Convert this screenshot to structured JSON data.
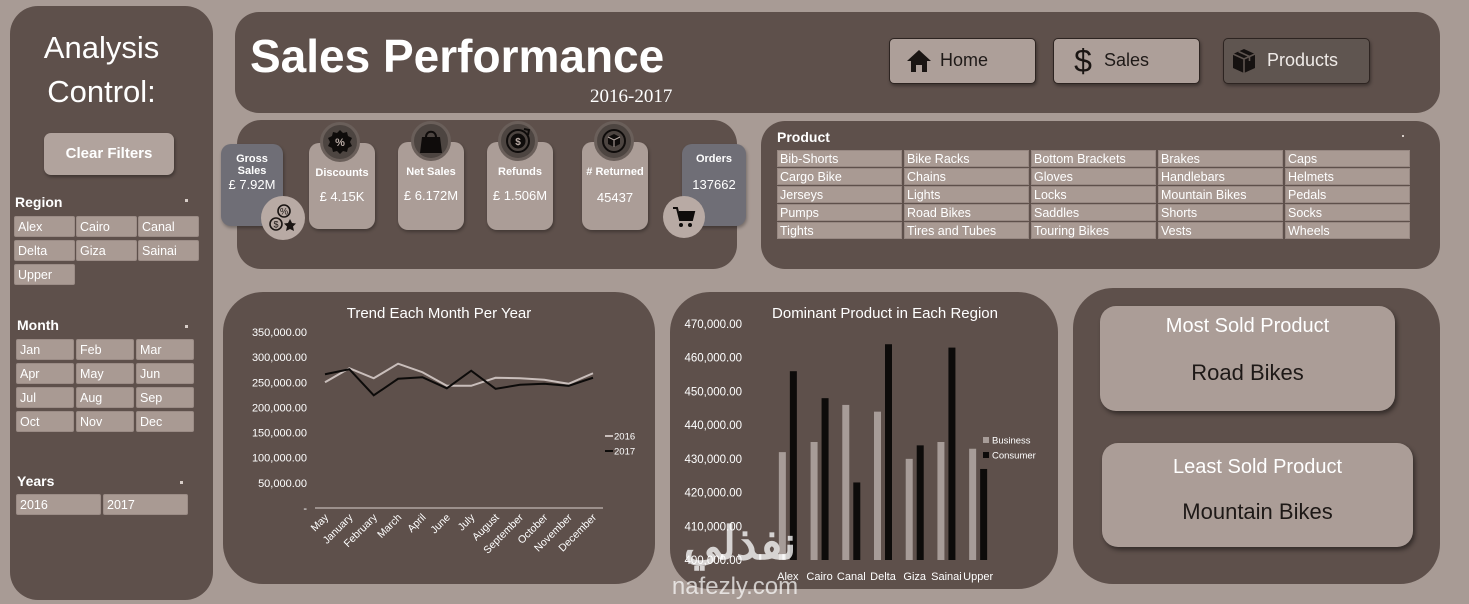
{
  "sidebar": {
    "title_line1": "Analysis",
    "title_line2": "Control:",
    "clear_filters": "Clear Filters",
    "region": {
      "title": "Region",
      "items": [
        "Alex",
        "Cairo",
        "Canal",
        "Delta",
        "Giza",
        "Sainai",
        "Upper"
      ]
    },
    "month": {
      "title": "Month",
      "items": [
        "Jan",
        "Feb",
        "Mar",
        "Apr",
        "May",
        "Jun",
        "Jul",
        "Aug",
        "Sep",
        "Oct",
        "Nov",
        "Dec"
      ]
    },
    "years": {
      "title": "Years",
      "items": [
        "2016",
        "2017"
      ]
    }
  },
  "header": {
    "title": "Sales Performance",
    "subtitle": "2016-2017",
    "nav": [
      {
        "label": "Home",
        "icon": "home-icon"
      },
      {
        "label": "Sales",
        "icon": "dollar-icon"
      },
      {
        "label": "Products",
        "icon": "box-icon"
      }
    ]
  },
  "kpis": {
    "gross_sales": {
      "label": "Gross Sales",
      "value": "£ 7.92M",
      "icon": "money-star-icon"
    },
    "discounts": {
      "label": "Discounts",
      "value": "£ 4.15K",
      "icon": "percent-badge-icon"
    },
    "net_sales": {
      "label": "Net Sales",
      "value": "£ 6.172M",
      "icon": "shopping-bag-icon"
    },
    "refunds": {
      "label": "Refunds",
      "value": "£ 1.506M",
      "icon": "refund-icon"
    },
    "returned": {
      "label": "# Returned",
      "value": "45437",
      "icon": "return-box-icon"
    },
    "orders": {
      "label": "Orders",
      "value": "137662",
      "icon": "cart-icon"
    }
  },
  "products": {
    "title": "Product",
    "items": [
      "Bib-Shorts",
      "Bike Racks",
      "Bottom Brackets",
      "Brakes",
      "Caps",
      "Cargo Bike",
      "Chains",
      "Gloves",
      "Handlebars",
      "Helmets",
      "Jerseys",
      "Lights",
      "Locks",
      "Mountain Bikes",
      "Pedals",
      "Pumps",
      "Road Bikes",
      "Saddles",
      "Shorts",
      "Socks",
      "Tights",
      "Tires and Tubes",
      "Touring Bikes",
      "Vests",
      "Wheels"
    ]
  },
  "cards": {
    "most_sold": {
      "title": "Most Sold Product",
      "value": "Road Bikes"
    },
    "least_sold": {
      "title": "Least Sold Product",
      "value": "Mountain Bikes"
    }
  },
  "watermark": {
    "arabic": "نفذلي",
    "latin": "nafezly.com"
  },
  "chart_data": [
    {
      "type": "line",
      "title": "Trend Each Month Per Year",
      "categories": [
        "May",
        "January",
        "February",
        "March",
        "April",
        "June",
        "July",
        "August",
        "September",
        "October",
        "November",
        "December"
      ],
      "y_tick_labels": [
        "-",
        "50,000.00",
        "100,000.00",
        "150,000.00",
        "200,000.00",
        "250,000.00",
        "300,000.00",
        "350,000.00"
      ],
      "ylim": [
        0,
        350000
      ],
      "legend_position": "right",
      "series": [
        {
          "name": "2016",
          "color": "#c9bebb",
          "values": [
            250000,
            278000,
            258000,
            287000,
            270000,
            243000,
            243000,
            259000,
            258000,
            255000,
            247000,
            268000
          ]
        },
        {
          "name": "2017",
          "color": "#0d0b0a",
          "values": [
            266000,
            276000,
            224000,
            257000,
            260000,
            238000,
            273000,
            237000,
            245000,
            247000,
            243000,
            259000
          ]
        }
      ]
    },
    {
      "type": "bar",
      "title": "Dominant Product in Each Region",
      "categories": [
        "Alex",
        "Cairo",
        "Canal",
        "Delta",
        "Giza",
        "Sainai",
        "Upper"
      ],
      "y_tick_labels": [
        "400,000.00",
        "410,000.00",
        "420,000.00",
        "430,000.00",
        "440,000.00",
        "450,000.00",
        "460,000.00",
        "470,000.00"
      ],
      "ylim": [
        400000,
        470000
      ],
      "legend_position": "right",
      "series": [
        {
          "name": "Business",
          "color": "#a79c98",
          "values": [
            432000,
            435000,
            446000,
            444000,
            430000,
            435000,
            433000
          ]
        },
        {
          "name": "Consumer",
          "color": "#0d0b0a",
          "values": [
            456000,
            448000,
            423000,
            464000,
            434000,
            463000,
            427000
          ]
        }
      ]
    }
  ]
}
